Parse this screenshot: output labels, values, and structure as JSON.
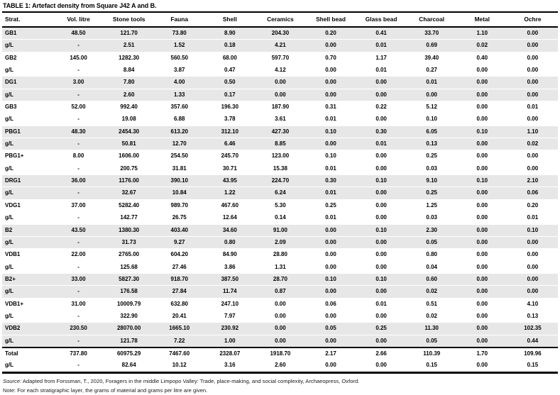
{
  "table": {
    "title": "TABLE 1: Artefact density from Square J42 A and B.",
    "stripe_color": "#e7e7e7",
    "rule_color": "#000000",
    "columns": [
      "Strat.",
      "Vol. litre",
      "Stone tools",
      "Fauna",
      "Shell",
      "Ceramics",
      "Shell bead",
      "Glass bead",
      "Charcoal",
      "Metal",
      "Ochre"
    ],
    "rows": [
      {
        "label": "GB1",
        "shaded": true,
        "values": [
          "48.50",
          "121.70",
          "73.80",
          "8.90",
          "204.30",
          "0.20",
          "0.41",
          "33.70",
          "1.10",
          "0.00"
        ]
      },
      {
        "label": "g/L",
        "shaded": true,
        "values": [
          "-",
          "2.51",
          "1.52",
          "0.18",
          "4.21",
          "0.00",
          "0.01",
          "0.69",
          "0.02",
          "0.00"
        ]
      },
      {
        "label": "GB2",
        "shaded": false,
        "values": [
          "145.00",
          "1282.30",
          "560.50",
          "68.00",
          "597.70",
          "0.70",
          "1.17",
          "39.40",
          "0.40",
          "0.00"
        ]
      },
      {
        "label": "g/L",
        "shaded": false,
        "values": [
          "-",
          "8.84",
          "3.87",
          "0.47",
          "4.12",
          "0.00",
          "0.01",
          "0.27",
          "0.00",
          "0.00"
        ]
      },
      {
        "label": "DG1",
        "shaded": true,
        "values": [
          "3.00",
          "7.80",
          "4.00",
          "0.50",
          "0.00",
          "0.00",
          "0.00",
          "0.01",
          "0.00",
          "0.00"
        ]
      },
      {
        "label": "g/L",
        "shaded": true,
        "values": [
          "-",
          "2.60",
          "1.33",
          "0.17",
          "0.00",
          "0.00",
          "0.00",
          "0.00",
          "0.00",
          "0.00"
        ]
      },
      {
        "label": "GB3",
        "shaded": false,
        "values": [
          "52.00",
          "992.40",
          "357.60",
          "196.30",
          "187.90",
          "0.31",
          "0.22",
          "5.12",
          "0.00",
          "0.01"
        ]
      },
      {
        "label": "g/L",
        "shaded": false,
        "values": [
          "-",
          "19.08",
          "6.88",
          "3.78",
          "3.61",
          "0.01",
          "0.00",
          "0.10",
          "0.00",
          "0.00"
        ]
      },
      {
        "label": "PBG1",
        "shaded": true,
        "values": [
          "48.30",
          "2454.30",
          "613.20",
          "312.10",
          "427.30",
          "0.10",
          "0.30",
          "6.05",
          "0.10",
          "1.10"
        ]
      },
      {
        "label": "g/L",
        "shaded": true,
        "values": [
          "-",
          "50.81",
          "12.70",
          "6.46",
          "8.85",
          "0.00",
          "0.01",
          "0.13",
          "0.00",
          "0.02"
        ]
      },
      {
        "label": "PBG1+",
        "shaded": false,
        "values": [
          "8.00",
          "1606.00",
          "254.50",
          "245.70",
          "123.00",
          "0.10",
          "0.00",
          "0.25",
          "0.00",
          "0.00"
        ]
      },
      {
        "label": "g/L",
        "shaded": false,
        "values": [
          "-",
          "200.75",
          "31.81",
          "30.71",
          "15.38",
          "0.01",
          "0.00",
          "0.03",
          "0.00",
          "0.00"
        ]
      },
      {
        "label": "DRG1",
        "shaded": true,
        "values": [
          "36.00",
          "1176.00",
          "390.10",
          "43.95",
          "224.70",
          "0.30",
          "0.10",
          "9.10",
          "0.10",
          "2.10"
        ]
      },
      {
        "label": "g/L",
        "shaded": true,
        "values": [
          "-",
          "32.67",
          "10.84",
          "1.22",
          "6.24",
          "0.01",
          "0.00",
          "0.25",
          "0.00",
          "0.06"
        ]
      },
      {
        "label": "VDG1",
        "shaded": false,
        "values": [
          "37.00",
          "5282.40",
          "989.70",
          "467.60",
          "5.30",
          "0.25",
          "0.00",
          "1.25",
          "0.00",
          "0.20"
        ]
      },
      {
        "label": "g/L",
        "shaded": false,
        "values": [
          "-",
          "142.77",
          "26.75",
          "12.64",
          "0.14",
          "0.01",
          "0.00",
          "0.03",
          "0.00",
          "0.01"
        ]
      },
      {
        "label": "B2",
        "shaded": true,
        "values": [
          "43.50",
          "1380.30",
          "403.40",
          "34.60",
          "91.00",
          "0.00",
          "0.10",
          "2.30",
          "0.00",
          "0.10"
        ]
      },
      {
        "label": "g/L",
        "shaded": true,
        "values": [
          "-",
          "31.73",
          "9.27",
          "0.80",
          "2.09",
          "0.00",
          "0.00",
          "0.05",
          "0.00",
          "0.00"
        ]
      },
      {
        "label": "VDB1",
        "shaded": false,
        "values": [
          "22.00",
          "2765.00",
          "604.20",
          "84.90",
          "28.80",
          "0.00",
          "0.00",
          "0.80",
          "0.00",
          "0.00"
        ]
      },
      {
        "label": "g/L",
        "shaded": false,
        "values": [
          "-",
          "125.68",
          "27.46",
          "3.86",
          "1.31",
          "0.00",
          "0.00",
          "0.04",
          "0.00",
          "0.00"
        ]
      },
      {
        "label": "B2+",
        "shaded": true,
        "values": [
          "33.00",
          "5827.30",
          "918.70",
          "387.50",
          "28.70",
          "0.10",
          "0.10",
          "0.60",
          "0.00",
          "0.00"
        ]
      },
      {
        "label": "g/L",
        "shaded": true,
        "values": [
          "-",
          "176.58",
          "27.84",
          "11.74",
          "0.87",
          "0.00",
          "0.00",
          "0.02",
          "0.00",
          "0.00"
        ]
      },
      {
        "label": "VDB1+",
        "shaded": false,
        "values": [
          "31.00",
          "10009.79",
          "632.80",
          "247.10",
          "0.00",
          "0.06",
          "0.01",
          "0.51",
          "0.00",
          "4.10"
        ]
      },
      {
        "label": "g/L",
        "shaded": false,
        "values": [
          "-",
          "322.90",
          "20.41",
          "7.97",
          "0.00",
          "0.00",
          "0.00",
          "0.02",
          "0.00",
          "0.13"
        ]
      },
      {
        "label": "VDB2",
        "shaded": true,
        "values": [
          "230.50",
          "28070.00",
          "1665.10",
          "230.92",
          "0.00",
          "0.05",
          "0.25",
          "11.30",
          "0.00",
          "102.35"
        ]
      },
      {
        "label": "g/L",
        "shaded": true,
        "values": [
          "-",
          "121.78",
          "7.22",
          "1.00",
          "0.00",
          "0.00",
          "0.00",
          "0.05",
          "0.00",
          "0.44"
        ]
      }
    ],
    "totals": [
      {
        "label": "Total",
        "values": [
          "737.80",
          "60975.29",
          "7467.60",
          "2328.07",
          "1918.70",
          "2.17",
          "2.66",
          "110.39",
          "1.70",
          "109.96"
        ]
      },
      {
        "label": "g/L",
        "values": [
          "-",
          "82.64",
          "10.12",
          "3.16",
          "2.60",
          "0.00",
          "0.00",
          "0.15",
          "0.00",
          "0.15"
        ]
      }
    ],
    "footer": {
      "source_label": "Source",
      "source_text": ": Adapted from Forssman, T., 2020, Foragers in the middle Limpopo Valley: Trade, place-making, and social complexity, Archaeopress, Oxford.",
      "note_text": "Note: For each stratigraphic layer, the grams of material and grams per litre are given."
    }
  }
}
